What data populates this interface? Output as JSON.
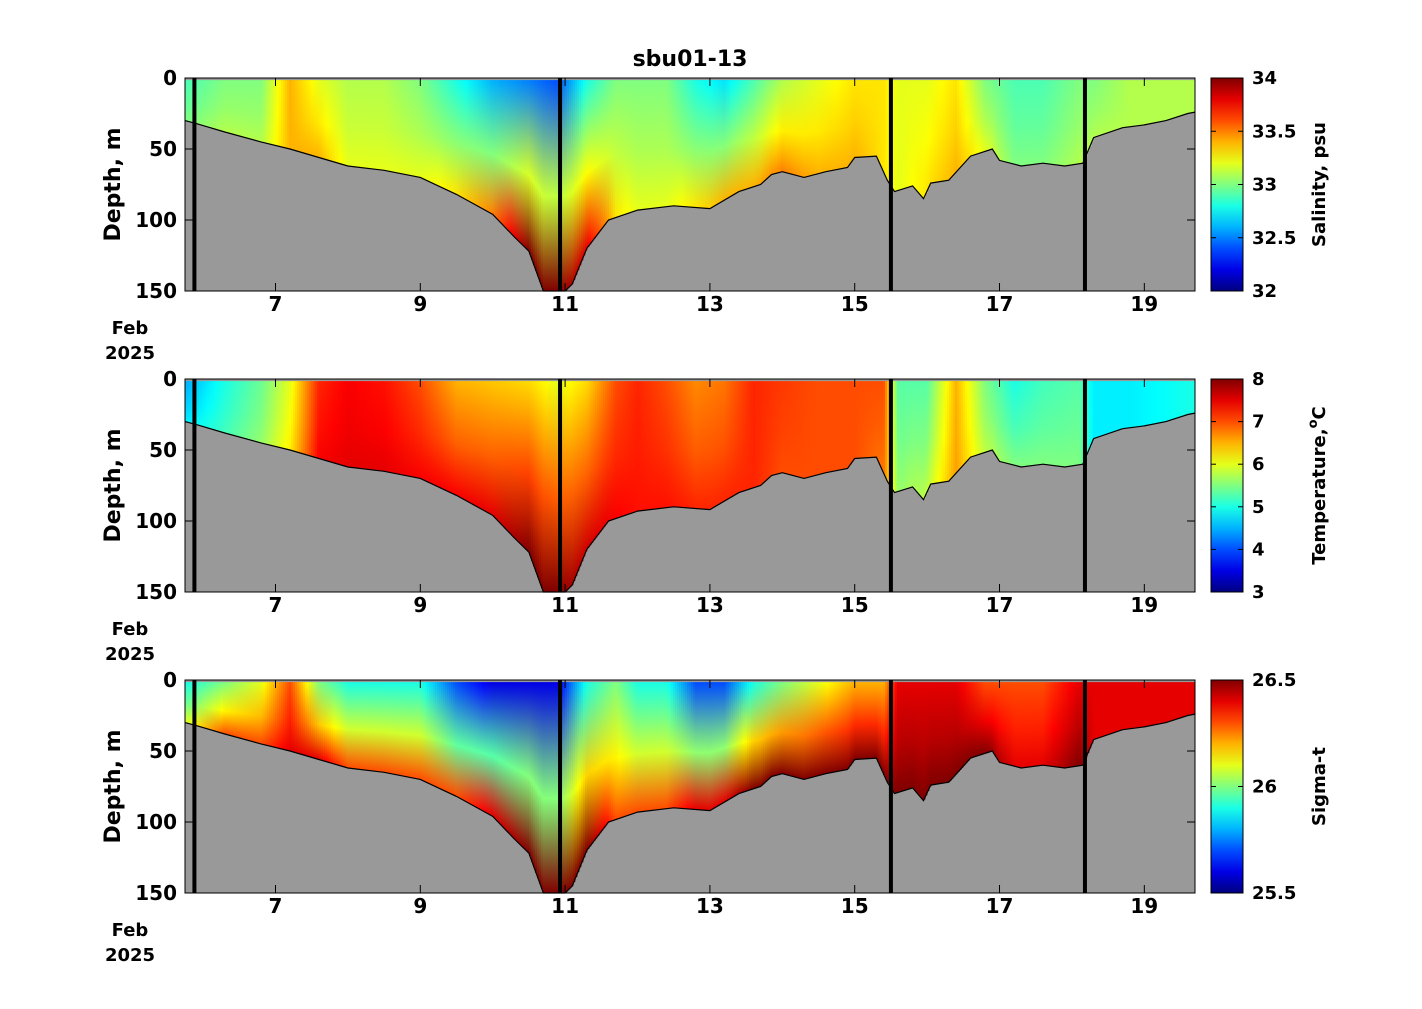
{
  "chart_data": {
    "type": "heatmap",
    "title": "sbu01-13",
    "x_units": "days of Feb 2025",
    "xlim": [
      5.75,
      19.7
    ],
    "x_ticks": [
      7,
      9,
      11,
      13,
      15,
      17,
      19
    ],
    "x_tick_labels": [
      "7",
      "9",
      "11",
      "13",
      "15",
      "17",
      "19"
    ],
    "x_month_label": "Feb",
    "x_year_label": "2025",
    "y_label": "Depth, m",
    "ylim": [
      0,
      150
    ],
    "y_reversed": true,
    "y_ticks": [
      0,
      50,
      100,
      150
    ],
    "y_tick_labels": [
      "0",
      "50",
      "100",
      "150"
    ],
    "colormap": "jet",
    "seabed_color": "#999999",
    "profile_gap_days": [
      5.88,
      10.93,
      15.5,
      18.18
    ],
    "bottom_depth": {
      "x": [
        5.75,
        5.9,
        6.3,
        6.8,
        7.2,
        7.6,
        8.0,
        8.5,
        9.0,
        9.5,
        10.0,
        10.3,
        10.5,
        10.7,
        10.85,
        11.0,
        11.1,
        11.3,
        11.6,
        12.0,
        12.5,
        13.0,
        13.4,
        13.7,
        13.85,
        14.0,
        14.15,
        14.3,
        14.6,
        14.9,
        15.0,
        15.3,
        15.45,
        15.55,
        15.8,
        15.95,
        16.05,
        16.3,
        16.6,
        16.9,
        17.0,
        17.3,
        17.6,
        17.9,
        18.15,
        18.3,
        18.7,
        19.0,
        19.3,
        19.6,
        19.7
      ],
      "y": [
        30,
        32,
        38,
        45,
        50,
        56,
        62,
        65,
        70,
        82,
        96,
        112,
        122,
        150,
        150,
        150,
        145,
        120,
        100,
        93,
        90,
        92,
        80,
        75,
        68,
        66,
        68,
        70,
        66,
        63,
        56,
        55,
        72,
        80,
        76,
        85,
        74,
        72,
        55,
        50,
        58,
        62,
        60,
        62,
        60,
        42,
        35,
        33,
        30,
        25,
        24
      ]
    },
    "panels": [
      {
        "name": "salinity",
        "colorbar_label": "Salinity, psu",
        "clim": [
          32,
          34
        ],
        "colorbar_ticks": [
          32,
          32.5,
          33,
          33.5,
          34
        ],
        "colorbar_tick_labels": [
          "32",
          "32.5",
          "33",
          "33.5",
          "34"
        ],
        "section": {
          "x": [
            5.8,
            6.3,
            6.8,
            7.2,
            7.6,
            8.0,
            8.5,
            9.0,
            9.5,
            10.0,
            10.5,
            10.9,
            11.3,
            11.7,
            12.0,
            12.4,
            12.8,
            13.2,
            13.6,
            14.0,
            14.5,
            15.0,
            15.4,
            15.6,
            16.0,
            16.4,
            16.8,
            17.2,
            17.6,
            18.1,
            18.3,
            18.8,
            19.3,
            19.7
          ],
          "surface": [
            32.9,
            33.0,
            33.0,
            33.4,
            33.2,
            33.1,
            33.1,
            33.0,
            32.8,
            32.6,
            32.5,
            32.4,
            32.8,
            33.0,
            33.0,
            33.0,
            32.8,
            32.7,
            32.9,
            33.1,
            33.2,
            33.3,
            33.3,
            33.2,
            33.2,
            33.3,
            33.0,
            32.9,
            32.9,
            33.0,
            33.0,
            33.1,
            33.1,
            33.1
          ],
          "bottom": [
            33.0,
            33.1,
            33.1,
            33.4,
            33.4,
            33.2,
            33.2,
            33.2,
            33.3,
            33.5,
            34.0,
            34.0,
            33.8,
            33.3,
            33.2,
            33.2,
            33.3,
            33.4,
            33.4,
            33.5,
            33.4,
            33.4,
            33.3,
            33.2,
            33.3,
            33.4,
            33.2,
            33.0,
            33.0,
            33.1,
            33.1,
            33.1,
            33.1,
            33.1
          ]
        }
      },
      {
        "name": "temperature",
        "colorbar_label": "Temperature,",
        "colorbar_label_unit": "o",
        "colorbar_label_suffix": "C",
        "clim": [
          3,
          8
        ],
        "colorbar_ticks": [
          3,
          4,
          5,
          6,
          7,
          8
        ],
        "colorbar_tick_labels": [
          "3",
          "4",
          "5",
          "6",
          "7",
          "8"
        ],
        "section": {
          "x": [
            5.8,
            6.3,
            6.8,
            7.2,
            7.6,
            8.0,
            8.5,
            9.0,
            9.5,
            10.0,
            10.5,
            10.9,
            11.3,
            11.7,
            12.0,
            12.4,
            12.8,
            13.2,
            13.6,
            14.0,
            14.5,
            15.0,
            15.4,
            15.6,
            16.0,
            16.4,
            16.8,
            17.2,
            17.6,
            18.1,
            18.3,
            18.8,
            19.3,
            19.7
          ],
          "surface": [
            4.5,
            5.0,
            5.4,
            6.0,
            7.2,
            7.4,
            7.3,
            7.0,
            6.5,
            6.4,
            6.3,
            6.0,
            6.3,
            7.0,
            7.2,
            7.0,
            6.7,
            6.8,
            7.2,
            7.1,
            7.0,
            7.0,
            7.0,
            5.3,
            5.3,
            6.5,
            5.5,
            5.0,
            5.2,
            5.3,
            4.8,
            4.8,
            4.9,
            5.0
          ],
          "bottom": [
            4.8,
            5.2,
            5.6,
            6.2,
            7.4,
            7.5,
            7.5,
            7.4,
            7.4,
            7.5,
            8.0,
            8.0,
            7.6,
            7.4,
            7.3,
            7.3,
            7.2,
            7.2,
            7.2,
            7.0,
            7.0,
            7.0,
            6.8,
            5.6,
            5.8,
            6.6,
            5.8,
            5.5,
            5.5,
            5.5,
            4.8,
            4.8,
            4.9,
            5.0
          ]
        }
      },
      {
        "name": "sigma-t",
        "colorbar_label": "Sigma-t",
        "clim": [
          25.5,
          26.5
        ],
        "colorbar_ticks": [
          25.5,
          26,
          26.5
        ],
        "colorbar_tick_labels": [
          "25.5",
          "26",
          "26.5"
        ],
        "section": {
          "x": [
            5.8,
            6.3,
            6.8,
            7.2,
            7.6,
            8.0,
            8.5,
            9.0,
            9.5,
            10.0,
            10.5,
            10.9,
            11.3,
            11.7,
            12.0,
            12.4,
            12.8,
            13.2,
            13.6,
            14.0,
            14.5,
            15.0,
            15.4,
            15.6,
            16.0,
            16.4,
            16.8,
            17.2,
            17.6,
            18.1,
            18.3,
            18.8,
            19.3,
            19.7
          ],
          "surface": [
            25.9,
            26.0,
            26.1,
            26.3,
            26.0,
            25.9,
            25.9,
            25.9,
            25.7,
            25.6,
            25.6,
            25.6,
            25.9,
            26.0,
            25.9,
            25.9,
            25.7,
            25.7,
            25.9,
            26.0,
            26.1,
            26.2,
            26.2,
            26.4,
            26.4,
            26.4,
            26.3,
            26.3,
            26.3,
            26.4,
            26.4,
            26.4,
            26.4,
            26.4
          ],
          "bottom": [
            26.1,
            26.3,
            26.3,
            26.4,
            26.4,
            26.3,
            26.3,
            26.3,
            26.3,
            26.4,
            26.5,
            26.5,
            26.5,
            26.3,
            26.3,
            26.3,
            26.4,
            26.4,
            26.5,
            26.5,
            26.5,
            26.5,
            26.5,
            26.5,
            26.5,
            26.5,
            26.5,
            26.4,
            26.4,
            26.5,
            26.4,
            26.4,
            26.4,
            26.4
          ]
        }
      }
    ]
  }
}
